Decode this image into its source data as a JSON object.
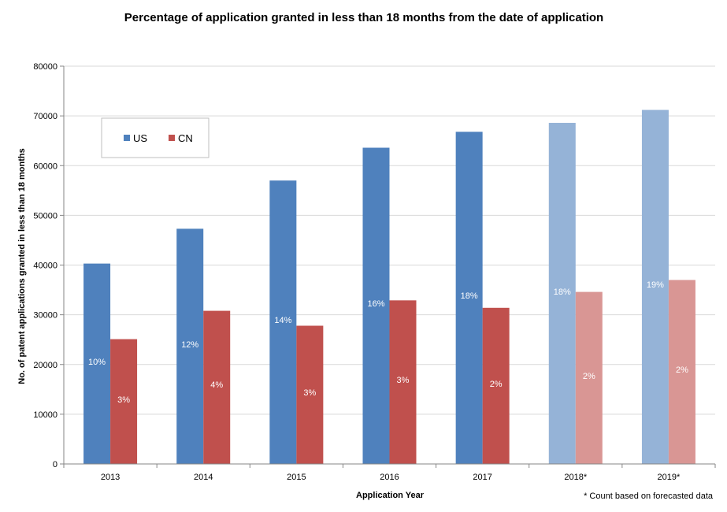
{
  "chart_data": {
    "type": "bar",
    "title": "Percentage of application granted in less than 18 months  from the date of application",
    "xlabel": "Application Year",
    "ylabel": "No. of patent applications  granted in less than 18 months",
    "ylim": [
      0,
      80000
    ],
    "yticks": [
      "0",
      "10000",
      "20000",
      "30000",
      "40000",
      "50000",
      "60000",
      "70000",
      "80000"
    ],
    "categories": [
      "2013",
      "2014",
      "2015",
      "2016",
      "2017",
      "2018*",
      "2019*"
    ],
    "forecast_flags": [
      false,
      false,
      false,
      false,
      false,
      true,
      true
    ],
    "grid": true,
    "legend_position": "top-left",
    "series": [
      {
        "name": "US",
        "color": "#4F81BD",
        "forecast_color": "#95B3D7",
        "values": [
          40300,
          47300,
          57000,
          63600,
          66800,
          68600,
          71200
        ],
        "labels": [
          "10%",
          "12%",
          "14%",
          "16%",
          "18%",
          "18%",
          "19%"
        ]
      },
      {
        "name": "CN",
        "color": "#C0504D",
        "forecast_color": "#D99694",
        "values": [
          25100,
          30800,
          27800,
          32900,
          31400,
          34600,
          37000
        ],
        "labels": [
          "3%",
          "4%",
          "3%",
          "3%",
          "2%",
          "2%",
          "2%"
        ]
      }
    ],
    "footnote": "* Count based on forecasted data"
  }
}
